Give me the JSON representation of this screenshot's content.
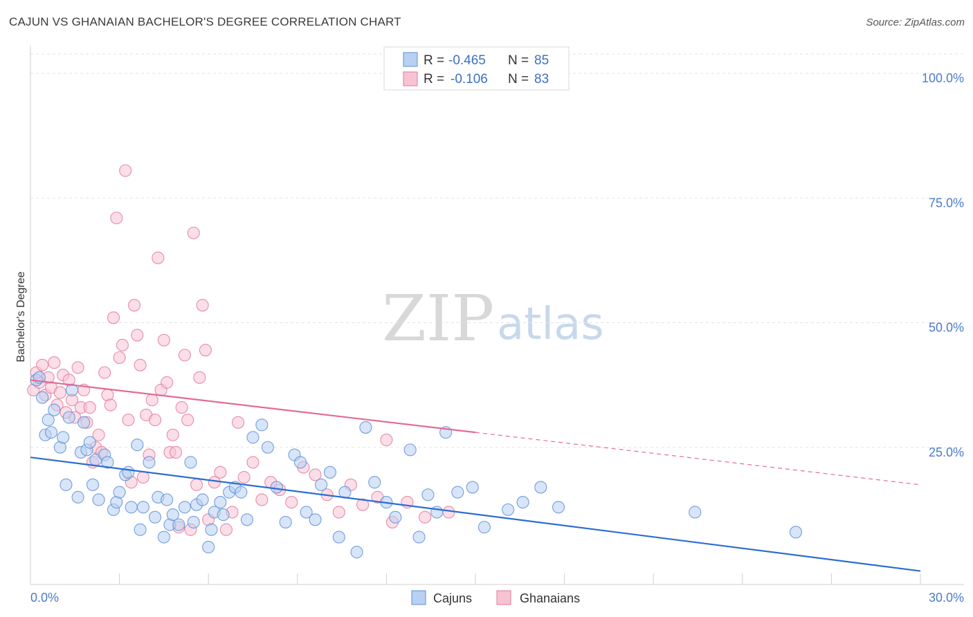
{
  "title": "CAJUN VS GHANAIAN BACHELOR'S DEGREE CORRELATION CHART",
  "source": "Source: ZipAtlas.com",
  "watermark": {
    "part1": "ZIP",
    "part2": "atlas"
  },
  "colors": {
    "cajun": "#5b8fd6",
    "cajun_fill": "#b8d0f2",
    "cajun_line": "#2b6cd4",
    "ghana": "#e07a9a",
    "ghana_fill": "#f7c3d3",
    "ghana_line": "#e46a92",
    "tick": "#4a7cc9"
  },
  "legend": {
    "rows": [
      {
        "r_label": "R =",
        "r_value": "-0.465",
        "n_label": "N =",
        "n_value": "85"
      },
      {
        "r_label": "R =",
        "r_value": "-0.106",
        "n_label": "N =",
        "n_value": "83"
      }
    ]
  },
  "bottom_legend": [
    "Cajuns",
    "Ghanaians"
  ],
  "chart_data": {
    "type": "scatter",
    "title": "CAJUN VS GHANAIAN BACHELOR'S DEGREE CORRELATION CHART",
    "xlabel": "",
    "ylabel": "Bachelor's Degree",
    "xlim": [
      0,
      30
    ],
    "ylim": [
      0,
      105
    ],
    "x_tick_labels": [
      "0.0%",
      "30.0%"
    ],
    "y_ticks": [
      25,
      50,
      75,
      100
    ],
    "y_tick_labels": [
      "25.0%",
      "50.0%",
      "75.0%",
      "100.0%"
    ],
    "series": [
      {
        "name": "Cajuns",
        "r": -0.465,
        "n": 85,
        "trend": {
          "x0": 0,
          "y0": 23.0,
          "x1": 30,
          "y1": 0.2
        },
        "points": [
          [
            0.2,
            38.5
          ],
          [
            0.3,
            39.0
          ],
          [
            0.4,
            35.0
          ],
          [
            0.5,
            27.5
          ],
          [
            0.6,
            30.5
          ],
          [
            0.7,
            28.0
          ],
          [
            0.8,
            32.5
          ],
          [
            1.0,
            25.0
          ],
          [
            1.1,
            27.0
          ],
          [
            1.2,
            17.5
          ],
          [
            1.3,
            31.0
          ],
          [
            1.4,
            36.5
          ],
          [
            1.6,
            15.0
          ],
          [
            1.7,
            24.0
          ],
          [
            1.8,
            30.0
          ],
          [
            1.9,
            24.5
          ],
          [
            2.0,
            26.0
          ],
          [
            2.1,
            17.5
          ],
          [
            2.2,
            22.5
          ],
          [
            2.3,
            14.5
          ],
          [
            2.5,
            23.5
          ],
          [
            2.6,
            22.0
          ],
          [
            2.8,
            12.5
          ],
          [
            2.9,
            14.0
          ],
          [
            3.0,
            16.0
          ],
          [
            3.2,
            19.5
          ],
          [
            3.3,
            20.0
          ],
          [
            3.4,
            13.0
          ],
          [
            3.6,
            25.5
          ],
          [
            3.7,
            8.5
          ],
          [
            3.8,
            13.0
          ],
          [
            4.0,
            22.0
          ],
          [
            4.2,
            11.0
          ],
          [
            4.3,
            15.0
          ],
          [
            4.5,
            7.0
          ],
          [
            4.6,
            14.5
          ],
          [
            4.7,
            9.5
          ],
          [
            4.8,
            11.5
          ],
          [
            5.0,
            9.5
          ],
          [
            5.2,
            13.0
          ],
          [
            5.4,
            22.0
          ],
          [
            5.5,
            10.0
          ],
          [
            5.6,
            13.5
          ],
          [
            5.8,
            14.5
          ],
          [
            6.0,
            5.0
          ],
          [
            6.1,
            8.5
          ],
          [
            6.2,
            12.0
          ],
          [
            6.4,
            14.0
          ],
          [
            6.5,
            11.5
          ],
          [
            6.7,
            16.0
          ],
          [
            6.9,
            17.0
          ],
          [
            7.1,
            16.0
          ],
          [
            7.3,
            10.5
          ],
          [
            7.5,
            27.0
          ],
          [
            7.8,
            29.5
          ],
          [
            8.0,
            25.0
          ],
          [
            8.3,
            17.0
          ],
          [
            8.6,
            10.0
          ],
          [
            8.9,
            23.5
          ],
          [
            9.1,
            22.0
          ],
          [
            9.3,
            12.0
          ],
          [
            9.6,
            10.5
          ],
          [
            9.8,
            17.5
          ],
          [
            10.1,
            20.0
          ],
          [
            10.4,
            7.0
          ],
          [
            10.6,
            16.0
          ],
          [
            11.0,
            4.0
          ],
          [
            11.3,
            29.0
          ],
          [
            11.6,
            18.0
          ],
          [
            12.0,
            14.0
          ],
          [
            12.3,
            11.0
          ],
          [
            12.8,
            24.5
          ],
          [
            13.1,
            7.0
          ],
          [
            13.4,
            15.5
          ],
          [
            13.7,
            12.0
          ],
          [
            14.0,
            28.0
          ],
          [
            14.4,
            16.0
          ],
          [
            14.9,
            17.0
          ],
          [
            15.3,
            9.0
          ],
          [
            16.1,
            12.5
          ],
          [
            16.6,
            14.0
          ],
          [
            17.2,
            17.0
          ],
          [
            17.8,
            13.0
          ],
          [
            22.4,
            12.0
          ],
          [
            25.8,
            8.0
          ]
        ]
      },
      {
        "name": "Ghanaians",
        "r": -0.106,
        "n": 83,
        "trend": {
          "x0": 0,
          "y0": 38.5,
          "x1": 15.0,
          "y1": 28.0,
          "dash_x1": 30,
          "dash_y1": 17.5
        },
        "points": [
          [
            0.1,
            36.5
          ],
          [
            0.2,
            40.0
          ],
          [
            0.3,
            38.0
          ],
          [
            0.4,
            41.5
          ],
          [
            0.5,
            35.5
          ],
          [
            0.6,
            39.0
          ],
          [
            0.7,
            37.0
          ],
          [
            0.8,
            42.0
          ],
          [
            0.9,
            33.5
          ],
          [
            1.0,
            36.0
          ],
          [
            1.1,
            39.5
          ],
          [
            1.2,
            32.0
          ],
          [
            1.3,
            38.5
          ],
          [
            1.4,
            34.5
          ],
          [
            1.5,
            31.0
          ],
          [
            1.6,
            41.0
          ],
          [
            1.7,
            33.0
          ],
          [
            1.8,
            36.5
          ],
          [
            1.9,
            30.0
          ],
          [
            2.0,
            33.0
          ],
          [
            2.1,
            22.0
          ],
          [
            2.2,
            25.0
          ],
          [
            2.3,
            27.5
          ],
          [
            2.4,
            24.0
          ],
          [
            2.5,
            40.0
          ],
          [
            2.6,
            35.5
          ],
          [
            2.7,
            33.5
          ],
          [
            2.8,
            51.0
          ],
          [
            2.9,
            71.0
          ],
          [
            3.0,
            43.0
          ],
          [
            3.1,
            45.5
          ],
          [
            3.2,
            80.5
          ],
          [
            3.3,
            30.5
          ],
          [
            3.4,
            18.0
          ],
          [
            3.5,
            53.5
          ],
          [
            3.6,
            47.5
          ],
          [
            3.7,
            41.5
          ],
          [
            3.8,
            19.0
          ],
          [
            3.9,
            31.5
          ],
          [
            4.0,
            23.5
          ],
          [
            4.1,
            34.5
          ],
          [
            4.2,
            30.5
          ],
          [
            4.3,
            63.0
          ],
          [
            4.4,
            36.5
          ],
          [
            4.5,
            46.5
          ],
          [
            4.6,
            38.0
          ],
          [
            4.7,
            24.0
          ],
          [
            4.8,
            27.5
          ],
          [
            4.9,
            24.0
          ],
          [
            5.0,
            9.0
          ],
          [
            5.1,
            33.0
          ],
          [
            5.2,
            43.5
          ],
          [
            5.3,
            30.5
          ],
          [
            5.4,
            8.5
          ],
          [
            5.5,
            68.0
          ],
          [
            5.6,
            17.5
          ],
          [
            5.7,
            39.0
          ],
          [
            5.8,
            53.5
          ],
          [
            5.9,
            44.5
          ],
          [
            6.0,
            10.5
          ],
          [
            6.2,
            18.0
          ],
          [
            6.4,
            20.0
          ],
          [
            6.6,
            8.5
          ],
          [
            6.8,
            12.0
          ],
          [
            7.0,
            30.0
          ],
          [
            7.2,
            19.0
          ],
          [
            7.5,
            22.0
          ],
          [
            7.8,
            14.5
          ],
          [
            8.1,
            18.0
          ],
          [
            8.4,
            16.5
          ],
          [
            8.8,
            14.0
          ],
          [
            9.2,
            21.0
          ],
          [
            9.6,
            19.5
          ],
          [
            10.0,
            15.5
          ],
          [
            10.4,
            12.0
          ],
          [
            10.8,
            17.5
          ],
          [
            11.2,
            13.5
          ],
          [
            11.7,
            15.0
          ],
          [
            12.2,
            10.0
          ],
          [
            12.7,
            14.0
          ],
          [
            13.3,
            11.0
          ],
          [
            14.1,
            12.0
          ],
          [
            12.0,
            26.5
          ]
        ]
      }
    ]
  }
}
